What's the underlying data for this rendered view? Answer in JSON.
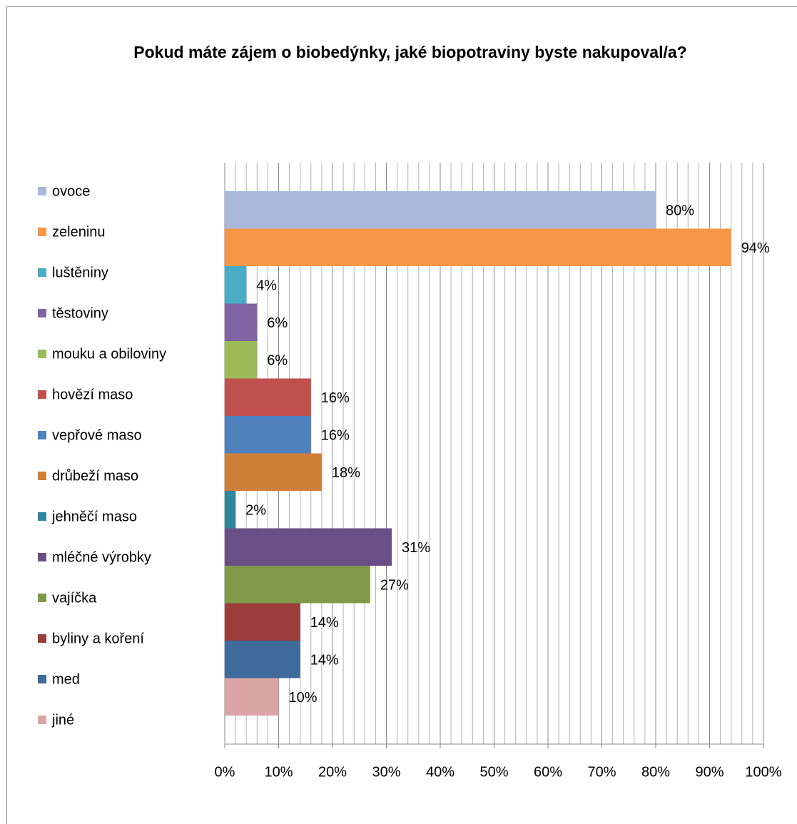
{
  "chart_data": {
    "type": "bar",
    "orientation": "horizontal",
    "title": "Pokud máte zájem o biobedýnky, jaké biopotraviny byste nakupoval/a?",
    "series": [
      {
        "name": "ovoce",
        "color": "#a9b9d9",
        "values": [
          80
        ],
        "value_labels": [
          "80%"
        ]
      },
      {
        "name": "zeleninu",
        "color": "#f79646",
        "values": [
          94
        ],
        "value_labels": [
          "94%"
        ]
      },
      {
        "name": "luštěniny",
        "color": "#4bacc6",
        "values": [
          4
        ],
        "value_labels": [
          "4%"
        ]
      },
      {
        "name": "těstoviny",
        "color": "#8064a2",
        "values": [
          6
        ],
        "value_labels": [
          "6%"
        ]
      },
      {
        "name": "mouku a obiloviny",
        "color": "#9bbb59",
        "values": [
          6
        ],
        "value_labels": [
          "6%"
        ]
      },
      {
        "name": "hovězí maso",
        "color": "#c0504d",
        "values": [
          16
        ],
        "value_labels": [
          "16%"
        ]
      },
      {
        "name": "vepřové maso",
        "color": "#4f81bd",
        "values": [
          16
        ],
        "value_labels": [
          "16%"
        ]
      },
      {
        "name": "drůbeží maso",
        "color": "#cf7f3a",
        "values": [
          18
        ],
        "value_labels": [
          "18%"
        ]
      },
      {
        "name": "jehněčí maso",
        "color": "#31859c",
        "values": [
          2
        ],
        "value_labels": [
          "2%"
        ]
      },
      {
        "name": "mléčné výrobky",
        "color": "#6a4f87",
        "values": [
          31
        ],
        "value_labels": [
          "31%"
        ]
      },
      {
        "name": "vajíčka",
        "color": "#7f9a48",
        "values": [
          27
        ],
        "value_labels": [
          "27%"
        ]
      },
      {
        "name": "byliny a koření",
        "color": "#9b3d3a",
        "values": [
          14
        ],
        "value_labels": [
          "14%"
        ]
      },
      {
        "name": "med",
        "color": "#3f6a9c",
        "values": [
          14
        ],
        "value_labels": [
          "14%"
        ]
      },
      {
        "name": "jiné",
        "color": "#d9a6a5",
        "values": [
          10
        ],
        "value_labels": [
          "10%"
        ]
      }
    ],
    "xlim": [
      0,
      100
    ],
    "xticks": [
      {
        "value": 0,
        "label": "0%"
      },
      {
        "value": 10,
        "label": "10%"
      },
      {
        "value": 20,
        "label": "20%"
      },
      {
        "value": 30,
        "label": "30%"
      },
      {
        "value": 40,
        "label": "40%"
      },
      {
        "value": 50,
        "label": "50%"
      },
      {
        "value": 60,
        "label": "60%"
      },
      {
        "value": 70,
        "label": "70%"
      },
      {
        "value": 80,
        "label": "80%"
      },
      {
        "value": 90,
        "label": "90%"
      },
      {
        "value": 100,
        "label": "100%"
      }
    ],
    "xminorticks": [
      2,
      4,
      6,
      8,
      12,
      14,
      16,
      18,
      22,
      24,
      26,
      28,
      32,
      34,
      36,
      38,
      42,
      44,
      46,
      48,
      52,
      54,
      56,
      58,
      62,
      64,
      66,
      68,
      72,
      74,
      76,
      78,
      82,
      84,
      86,
      88,
      92,
      94,
      96,
      98
    ],
    "grid": true,
    "legend": "left"
  }
}
